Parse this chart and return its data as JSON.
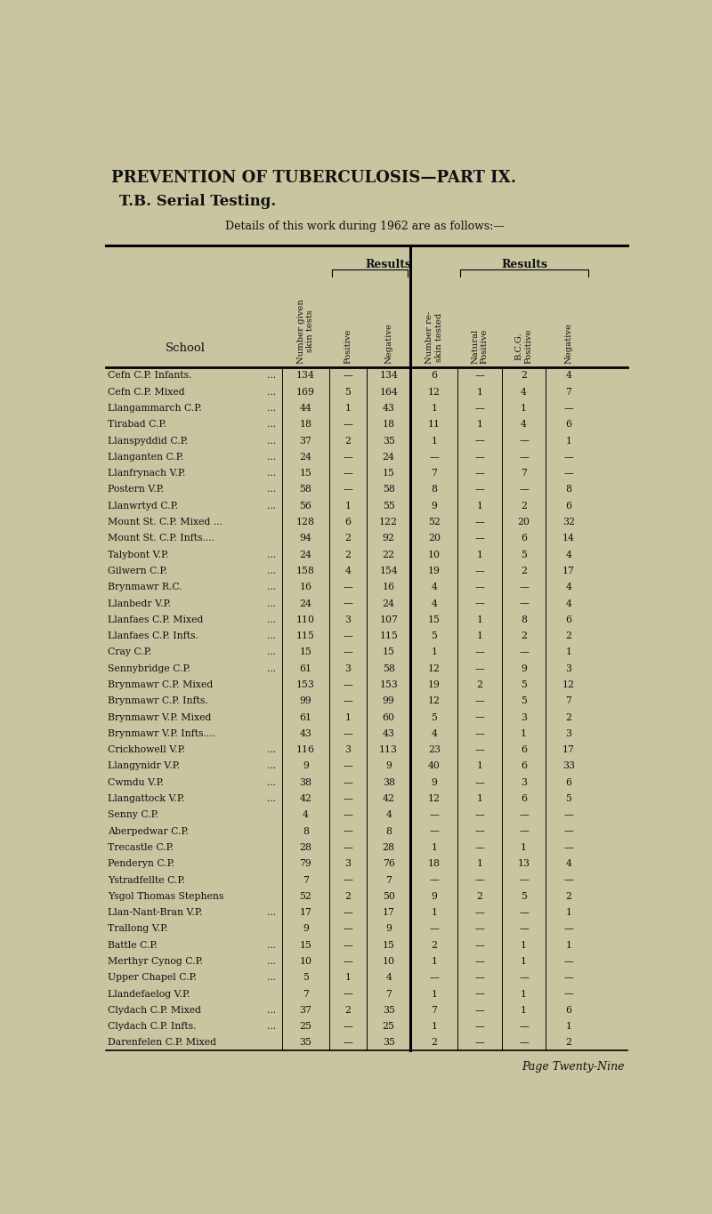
{
  "title1": "PREVENTION OF TUBERCULOSIS—PART IX.",
  "title2": "T.B. Serial Testing.",
  "subtitle": "Details of this work during 1962 are as follows:—",
  "rows": [
    [
      "Cefn C.P. Infants.",
      "...",
      "134",
      "—",
      "134",
      "6",
      "—",
      "2",
      "4"
    ],
    [
      "Cefn C.P. Mixed",
      "...",
      "169",
      "5",
      "164",
      "12",
      "1",
      "4",
      "7"
    ],
    [
      "Llangammarch C.P.",
      "...",
      "44",
      "1",
      "43",
      "1",
      "—",
      "1",
      "—"
    ],
    [
      "Tirabad C.P.",
      "...",
      "18",
      "—",
      "18",
      "11",
      "1",
      "4",
      "6"
    ],
    [
      "Llanspyddid C.P.",
      "...",
      "37",
      "2",
      "35",
      "1",
      "—",
      "—",
      "1"
    ],
    [
      "Llanganten C.P.",
      "...",
      "24",
      "—",
      "24",
      "—",
      "—",
      "—",
      "—"
    ],
    [
      "Llanfrynach V.P.",
      "...",
      "15",
      "—",
      "15",
      "7",
      "—",
      "7",
      "—"
    ],
    [
      "Postern V.P.",
      "...",
      "58",
      "—",
      "58",
      "8",
      "—",
      "—",
      "8"
    ],
    [
      "Llanwrtyd C.P.",
      "...",
      "56",
      "1",
      "55",
      "9",
      "1",
      "2",
      "6"
    ],
    [
      "Mount St. C.P. Mixed ...",
      "",
      "128",
      "6",
      "122",
      "52",
      "—",
      "20",
      "32"
    ],
    [
      "Mount St. C.P. Infts....",
      "",
      "94",
      "2",
      "92",
      "20",
      "—",
      "6",
      "14"
    ],
    [
      "Talybont V.P.",
      "...",
      "24",
      "2",
      "22",
      "10",
      "1",
      "5",
      "4"
    ],
    [
      "Gilwern C.P.",
      "...",
      "158",
      "4",
      "154",
      "19",
      "—",
      "2",
      "17"
    ],
    [
      "Brynmawr R.C.",
      "...",
      "16",
      "—",
      "16",
      "4",
      "—",
      "—",
      "4"
    ],
    [
      "Llanbedr V.P.",
      "...",
      "24",
      "—",
      "24",
      "4",
      "—",
      "—",
      "4"
    ],
    [
      "Llanfaes C.P. Mixed",
      "...",
      "110",
      "3",
      "107",
      "15",
      "1",
      "8",
      "6"
    ],
    [
      "Llanfaes C.P. Infts.",
      "...",
      "115",
      "—",
      "115",
      "5",
      "1",
      "2",
      "2"
    ],
    [
      "Cray C.P.",
      "...",
      "15",
      "—",
      "15",
      "1",
      "—",
      "—",
      "1"
    ],
    [
      "Sennybridge C.P.",
      "...",
      "61",
      "3",
      "58",
      "12",
      "—",
      "9",
      "3"
    ],
    [
      "Brynmawr C.P. Mixed",
      "",
      "153",
      "—",
      "153",
      "19",
      "2",
      "5",
      "12"
    ],
    [
      "Brynmawr C.P. Infts.",
      "",
      "99",
      "—",
      "99",
      "12",
      "—",
      "5",
      "7"
    ],
    [
      "Brynmawr V.P. Mixed",
      "",
      "61",
      "1",
      "60",
      "5",
      "—",
      "3",
      "2"
    ],
    [
      "Brynmawr V.P. Infts....",
      "",
      "43",
      "—",
      "43",
      "4",
      "—",
      "1",
      "3"
    ],
    [
      "Crickhowell V.P.",
      "...",
      "116",
      "3",
      "113",
      "23",
      "—",
      "6",
      "17"
    ],
    [
      "Llangynidr V.P.",
      "...",
      "9",
      "—",
      "9",
      "40",
      "1",
      "6",
      "33"
    ],
    [
      "Cwmdu V.P.",
      "...",
      "38",
      "—",
      "38",
      "9",
      "—",
      "3",
      "6"
    ],
    [
      "Llangattock V.P.",
      "...",
      "42",
      "—",
      "42",
      "12",
      "1",
      "6",
      "5"
    ],
    [
      "Senny C.P.",
      "",
      "4",
      "—",
      "4",
      "—",
      "—",
      "—",
      "—"
    ],
    [
      "Aberpedwar C.P.",
      "",
      "8",
      "—",
      "8",
      "—",
      "—",
      "—",
      "—"
    ],
    [
      "Trecastle C.P.",
      "",
      "28",
      "—",
      "28",
      "1",
      "—",
      "1",
      "—"
    ],
    [
      "Penderyn C.P.",
      "",
      "79",
      "3",
      "76",
      "18",
      "1",
      "13",
      "4"
    ],
    [
      "Ystradfellte C.P.",
      "",
      "7",
      "—",
      "7",
      "—",
      "—",
      "—",
      "—"
    ],
    [
      "Ysgol Thomas Stephens",
      "",
      "52",
      "2",
      "50",
      "9",
      "2",
      "5",
      "2"
    ],
    [
      "Llan-Nant-Bran V.P.",
      "...",
      "17",
      "—",
      "17",
      "1",
      "—",
      "—",
      "1"
    ],
    [
      "Trallong V.P.",
      "",
      "9",
      "—",
      "9",
      "—",
      "—",
      "—",
      "—"
    ],
    [
      "Battle C.P.",
      "...",
      "15",
      "—",
      "15",
      "2",
      "—",
      "1",
      "1"
    ],
    [
      "Merthyr Cynog C.P.",
      "...",
      "10",
      "—",
      "10",
      "1",
      "—",
      "1",
      "—"
    ],
    [
      "Upper Chapel C.P.",
      "...",
      "5",
      "1",
      "4",
      "—",
      "—",
      "—",
      "—"
    ],
    [
      "Llandefaelog V.P.",
      "",
      "7",
      "—",
      "7",
      "1",
      "—",
      "1",
      "—"
    ],
    [
      "Clydach C.P. Mixed",
      "...",
      "37",
      "2",
      "35",
      "7",
      "—",
      "1",
      "6"
    ],
    [
      "Clydach C.P. Infts.",
      "...",
      "25",
      "—",
      "25",
      "1",
      "—",
      "—",
      "1"
    ],
    [
      "Darenfelen C.P. Mixed",
      "",
      "35",
      "—",
      "35",
      "2",
      "—",
      "—",
      "2"
    ]
  ],
  "footer": "Page Twenty-Nine",
  "bg_color": "#c9c5a1",
  "text_color": "#111111"
}
